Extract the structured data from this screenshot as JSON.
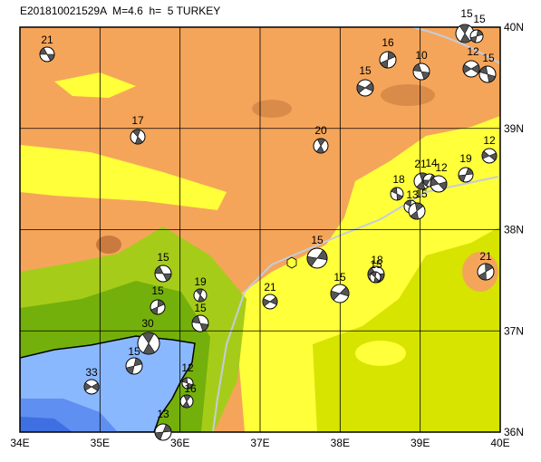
{
  "title": "E201810021529A  M=4.6  h=  5 TURKEY",
  "longitude_labels": [
    "34E",
    "35E",
    "36E",
    "37E",
    "38E",
    "39E",
    "40E"
  ],
  "latitude_labels": [
    "40N",
    "39N",
    "38N",
    "37N",
    "36N"
  ],
  "event_labels": [
    "21",
    "17",
    "16",
    "15",
    "10",
    "15",
    "15",
    "12",
    "15",
    "20",
    "19",
    "12",
    "18",
    "21",
    "14",
    "12",
    "13",
    "15",
    "15",
    "18",
    "15",
    "21",
    "15",
    "15",
    "19",
    "15",
    "21",
    "15",
    "30",
    "15",
    "33",
    "12",
    "16",
    "13"
  ]
}
